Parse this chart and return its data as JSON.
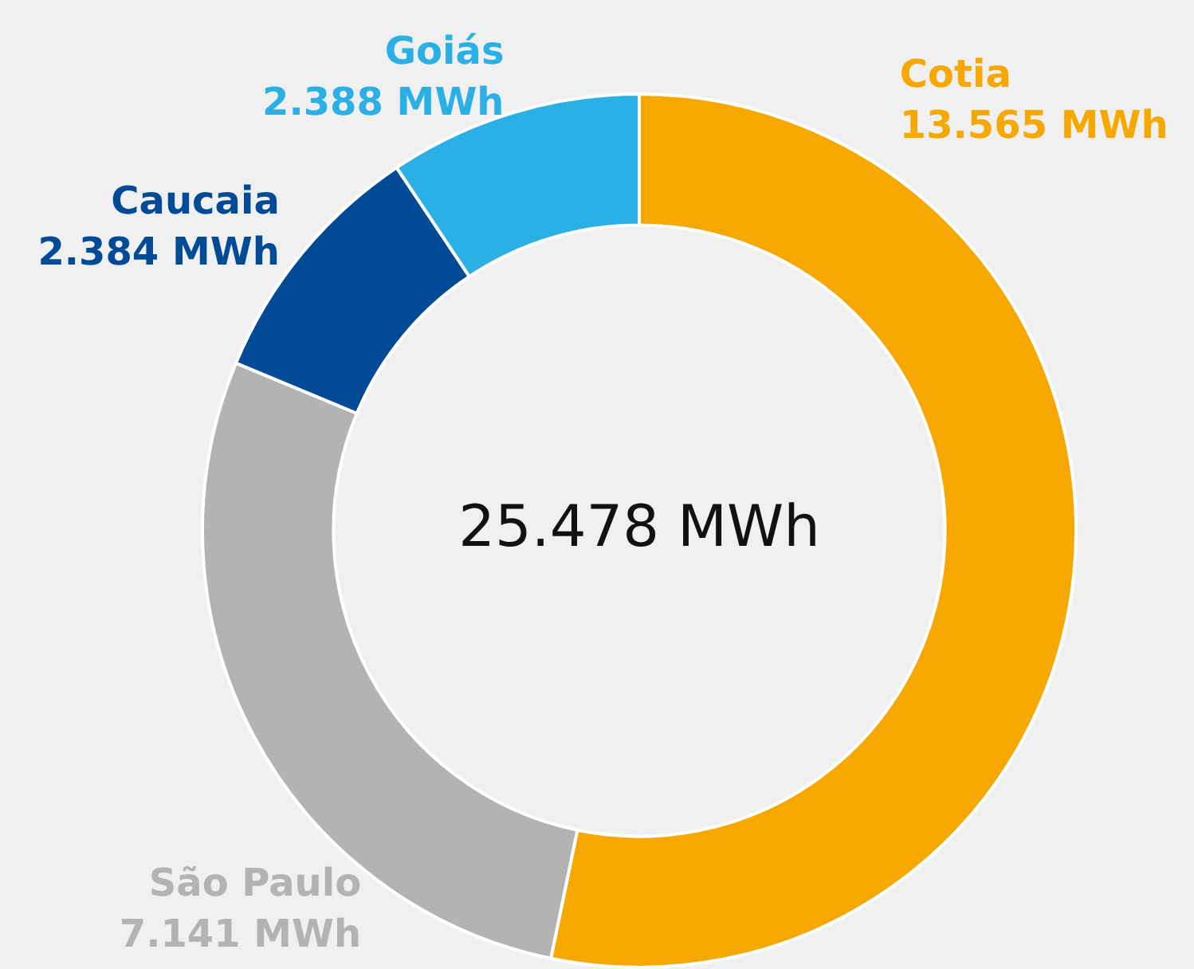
{
  "chart_data": {
    "type": "donut",
    "categories": [
      "Cotia",
      "São Paulo",
      "Caucaia",
      "Goiás"
    ],
    "values": [
      13565,
      7141,
      2384,
      2388
    ],
    "colors": [
      "#f7a800",
      "#b3b3b3",
      "#004a97",
      "#2bb0e6"
    ],
    "value_labels": [
      "13.565 MWh",
      "7.141 MWh",
      "2.384 MWh",
      "2.388 MWh"
    ],
    "annotations": [
      "25.478 MWh"
    ]
  }
}
